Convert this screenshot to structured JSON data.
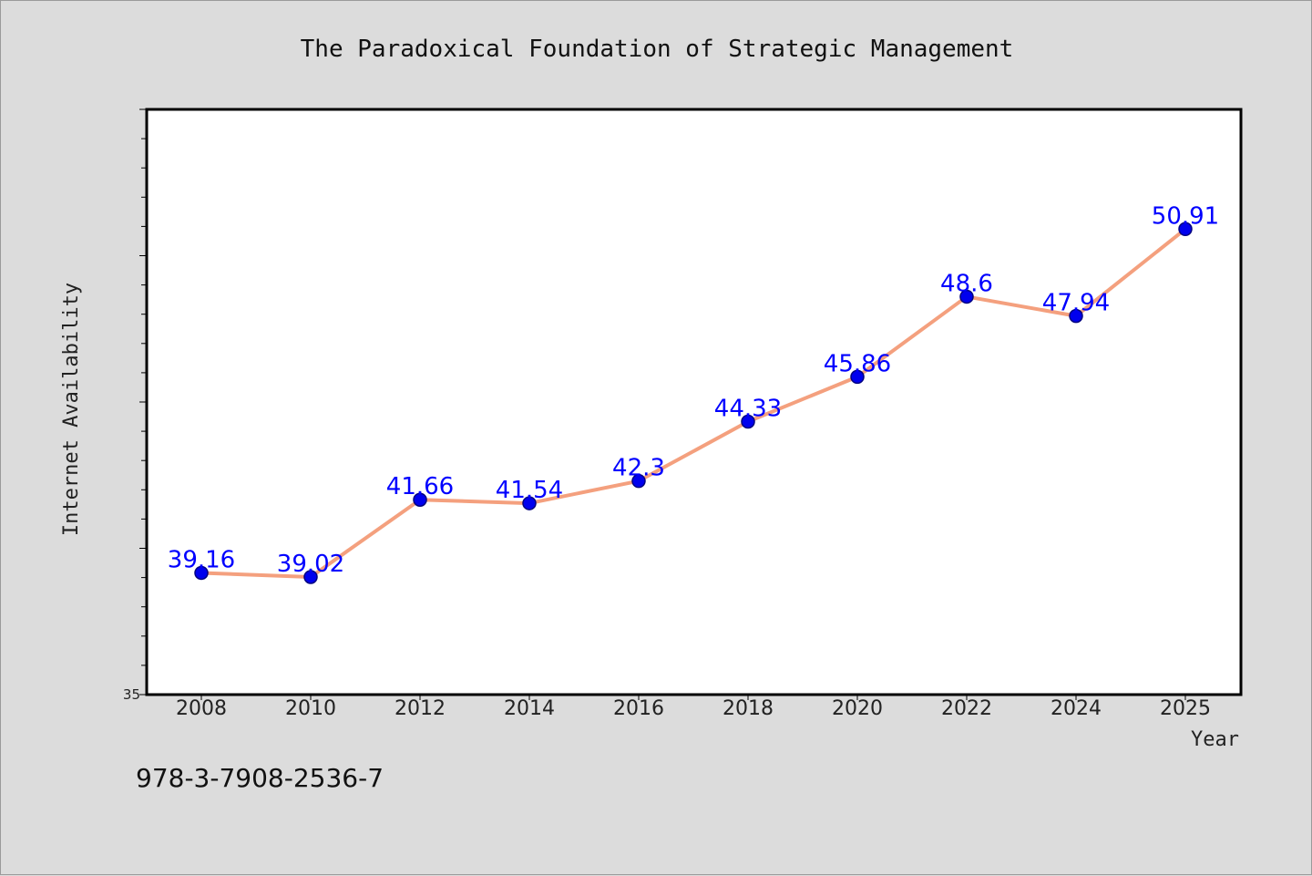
{
  "chart_data": {
    "type": "line",
    "title": "The Paradoxical Foundation of Strategic Management",
    "xlabel": "Year",
    "ylabel": "Internet Availability",
    "x": [
      "2008",
      "2010",
      "2012",
      "2014",
      "2016",
      "2018",
      "2020",
      "2022",
      "2024",
      "2025"
    ],
    "series": [
      {
        "values": [
          39.16,
          39.02,
          41.66,
          41.54,
          42.3,
          44.33,
          45.86,
          48.6,
          47.94,
          50.91
        ],
        "data_labels": [
          "39.16",
          "39.02",
          "41.66",
          "41.54",
          "42.3",
          "44.33",
          "45.86",
          "48.6",
          "47.94",
          "50.91"
        ]
      }
    ],
    "y_tick_labels": [
      "35"
    ],
    "ylim": [
      35,
      55
    ],
    "grid": false,
    "legend": "none",
    "colors": {
      "line": "#f4a07e",
      "marker": "#0000ee",
      "marker_edge": "#000080",
      "data_label": "#0000ff",
      "plot_bg": "#ffffff",
      "figure_bg": "#dcdcdc"
    }
  },
  "footer": {
    "isbn": "978-3-7908-2536-7"
  }
}
